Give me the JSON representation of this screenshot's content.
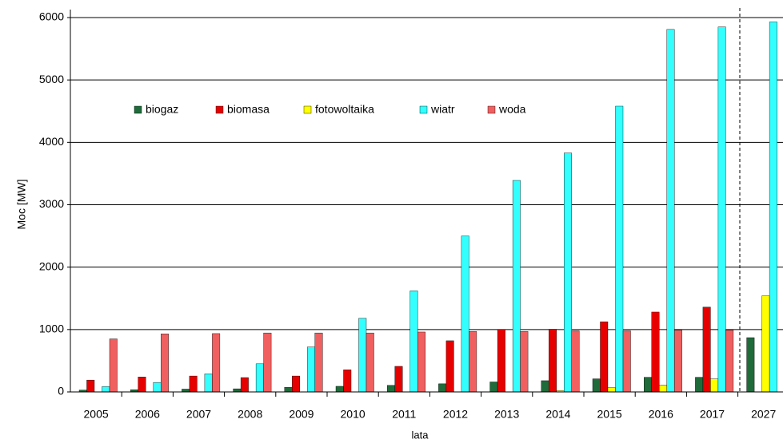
{
  "chart_data": {
    "type": "bar",
    "ylabel": "Moc [MW]",
    "xlabel": "lata",
    "categories": [
      "2005",
      "2006",
      "2007",
      "2008",
      "2009",
      "2010",
      "2011",
      "2012",
      "2013",
      "2014",
      "2015",
      "2016",
      "2017",
      "2027"
    ],
    "series": [
      {
        "name": "biogaz",
        "color": "#1f6b3a",
        "values": [
          30,
          35,
          45,
          50,
          75,
          90,
          105,
          130,
          160,
          180,
          210,
          235,
          235,
          870
        ]
      },
      {
        "name": "biomasa",
        "color": "#e60000",
        "values": [
          190,
          240,
          255,
          230,
          255,
          355,
          410,
          820,
          1000,
          1005,
          1125,
          1280,
          1360,
          null
        ]
      },
      {
        "name": "fotowoltaika",
        "color": "#ffff00",
        "values": [
          0,
          0,
          0,
          0,
          0,
          0,
          0,
          0,
          0,
          20,
          70,
          110,
          210,
          1540
        ]
      },
      {
        "name": "wiatr",
        "color": "#33ffff",
        "values": [
          85,
          150,
          290,
          450,
          720,
          1180,
          1620,
          2500,
          3390,
          3830,
          4580,
          5810,
          5850,
          5930
        ]
      },
      {
        "name": "woda",
        "color": "#f06060",
        "values": [
          850,
          930,
          935,
          945,
          945,
          945,
          960,
          970,
          970,
          980,
          980,
          990,
          990,
          null
        ]
      }
    ],
    "ylim": [
      0,
      6000
    ],
    "yticks": [
      0,
      1000,
      2000,
      3000,
      4000,
      5000,
      6000
    ],
    "grid": true
  }
}
